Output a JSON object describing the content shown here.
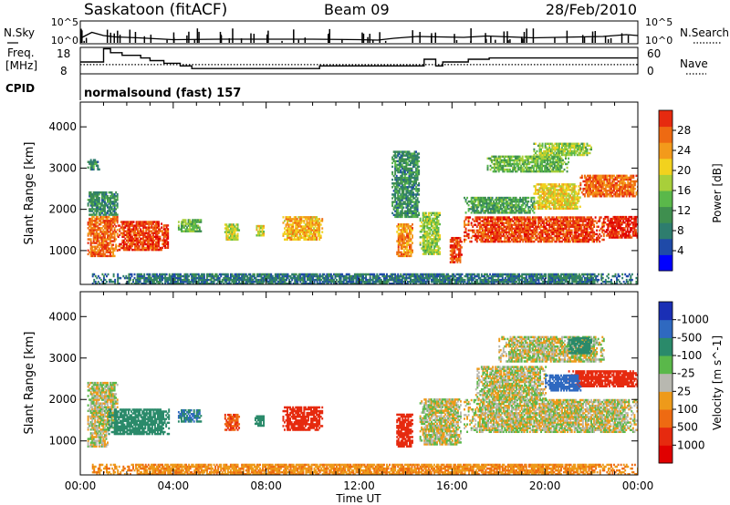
{
  "header": {
    "station": "Saskatoon (fitACF)",
    "beam": "Beam 09",
    "date": "28/Feb/2010"
  },
  "top_panels": {
    "nsky_label": "N.Sky",
    "nsky_ticks": [
      "10^5",
      "10^0"
    ],
    "nsearch_label": "N.Search",
    "nsearch_ticks": [
      "10^5",
      "10^0"
    ],
    "freq_label": "Freq.",
    "freq_unit": "[MHz]",
    "freq_ticks": [
      "18",
      "8"
    ],
    "nave_label": "Nave",
    "nave_ticks": [
      "60",
      "0"
    ],
    "cpid_label": "CPID",
    "cpid_value": "normalsound (fast) 157"
  },
  "axes": {
    "xlabel": "Time UT",
    "x_ticks": [
      "00:00",
      "04:00",
      "08:00",
      "12:00",
      "16:00",
      "20:00",
      "00:00"
    ],
    "ylabel": "Slant Range [km]",
    "y_ticks": [
      "1000",
      "2000",
      "3000",
      "4000"
    ]
  },
  "colors": {
    "power": [
      "#0000ff",
      "#1f4aa8",
      "#2e7d6e",
      "#3f8f4f",
      "#5ab84a",
      "#a8cf3a",
      "#f2d21e",
      "#f39a1b",
      "#ee6a12",
      "#e62a0f",
      "#e00000"
    ],
    "velocity": [
      "#1a2fb5",
      "#2f69c0",
      "#2a8a6a",
      "#5ab84a",
      "#b8b8b0",
      "#ee9a1a",
      "#ee6a12",
      "#e62a0f",
      "#e00000"
    ]
  },
  "chart_data": [
    {
      "type": "heatmap",
      "title": "",
      "xlabel": "Time UT",
      "ylabel": "Slant Range [km]",
      "xlim": [
        0,
        24
      ],
      "ylim": [
        180,
        4600
      ],
      "colorbar_label": "Power [dB]",
      "colorbar_ticks": [
        "4",
        "8",
        "12",
        "16",
        "20",
        "24",
        "28"
      ],
      "colorbar_range": [
        0,
        30
      ],
      "patches": [
        {
          "t0": 0.3,
          "t1": 1.6,
          "r0": 850,
          "r1": 1800,
          "v": 24
        },
        {
          "t0": 0.3,
          "t1": 1.6,
          "r0": 1850,
          "r1": 2400,
          "v": 8
        },
        {
          "t0": 0.3,
          "t1": 0.8,
          "r0": 2950,
          "r1": 3200,
          "v": 8
        },
        {
          "t0": 1.6,
          "t1": 3.5,
          "r0": 1000,
          "r1": 1700,
          "v": 26
        },
        {
          "t0": 3.5,
          "t1": 3.8,
          "r0": 1050,
          "r1": 1600,
          "v": 26
        },
        {
          "t0": 4.2,
          "t1": 5.2,
          "r0": 1450,
          "r1": 1750,
          "v": 12
        },
        {
          "t0": 6.2,
          "t1": 6.8,
          "r0": 1250,
          "r1": 1650,
          "v": 16
        },
        {
          "t0": 7.5,
          "t1": 7.9,
          "r0": 1350,
          "r1": 1600,
          "v": 16
        },
        {
          "t0": 8.7,
          "t1": 10.4,
          "r0": 1250,
          "r1": 1800,
          "v": 20
        },
        {
          "t0": 13.6,
          "t1": 14.3,
          "r0": 850,
          "r1": 1650,
          "v": 22
        },
        {
          "t0": 14.6,
          "t1": 15.5,
          "r0": 900,
          "r1": 1900,
          "v": 14
        },
        {
          "t0": 15.9,
          "t1": 16.4,
          "r0": 700,
          "r1": 1300,
          "v": 26
        },
        {
          "t0": 16.5,
          "t1": 22.5,
          "r0": 1200,
          "r1": 1800,
          "v": 26
        },
        {
          "t0": 22.5,
          "t1": 24.0,
          "r0": 1300,
          "r1": 1800,
          "v": 28
        },
        {
          "t0": 16.5,
          "t1": 19.5,
          "r0": 1900,
          "r1": 2300,
          "v": 10
        },
        {
          "t0": 19.5,
          "t1": 21.5,
          "r0": 2000,
          "r1": 2600,
          "v": 18
        },
        {
          "t0": 21.5,
          "t1": 24.0,
          "r0": 2300,
          "r1": 2800,
          "v": 24
        },
        {
          "t0": 17.5,
          "t1": 21.0,
          "r0": 2900,
          "r1": 3300,
          "v": 12
        },
        {
          "t0": 19.5,
          "t1": 22.0,
          "r0": 3300,
          "r1": 3600,
          "v": 14
        },
        {
          "t0": 13.4,
          "t1": 14.6,
          "r0": 1800,
          "r1": 3400,
          "v": 8
        },
        {
          "t0": 0.5,
          "t1": 24.0,
          "r0": 180,
          "r1": 420,
          "v": 6
        }
      ]
    },
    {
      "type": "heatmap",
      "title": "",
      "xlabel": "Time UT",
      "ylabel": "Slant Range [km]",
      "xlim": [
        0,
        24
      ],
      "ylim": [
        180,
        4600
      ],
      "colorbar_label": "Velocity [m s^-1]",
      "colorbar_ticks": [
        "1000",
        "500",
        "100",
        "25",
        "-25",
        "-100",
        "-500",
        "-1000"
      ],
      "colorbar_range": [
        -1000,
        1000
      ],
      "patches": [
        {
          "t0": 0.3,
          "t1": 1.2,
          "r0": 850,
          "r1": 1300,
          "v": 0
        },
        {
          "t0": 0.3,
          "t1": 1.6,
          "r0": 1300,
          "r1": 2400,
          "v": 0
        },
        {
          "t0": 1.2,
          "t1": 3.8,
          "r0": 1150,
          "r1": 1750,
          "v": 150
        },
        {
          "t0": 4.2,
          "t1": 5.2,
          "r0": 1450,
          "r1": 1750,
          "v": 300
        },
        {
          "t0": 6.2,
          "t1": 6.8,
          "r0": 1250,
          "r1": 1650,
          "v": -300
        },
        {
          "t0": 7.5,
          "t1": 7.9,
          "r0": 1350,
          "r1": 1600,
          "v": 200
        },
        {
          "t0": 8.7,
          "t1": 10.4,
          "r0": 1250,
          "r1": 1800,
          "v": -350
        },
        {
          "t0": 13.6,
          "t1": 14.3,
          "r0": 850,
          "r1": 1650,
          "v": -400
        },
        {
          "t0": 14.6,
          "t1": 16.4,
          "r0": 900,
          "r1": 2000,
          "v": 0
        },
        {
          "t0": 16.5,
          "t1": 24.0,
          "r0": 1200,
          "r1": 2000,
          "v": 0
        },
        {
          "t0": 17.0,
          "t1": 20.0,
          "r0": 2000,
          "r1": 2800,
          "v": 0
        },
        {
          "t0": 21.0,
          "t1": 24.0,
          "r0": 2300,
          "r1": 2700,
          "v": -400
        },
        {
          "t0": 20.0,
          "t1": 21.5,
          "r0": 2200,
          "r1": 2600,
          "v": 600
        },
        {
          "t0": 18.0,
          "t1": 22.5,
          "r0": 2900,
          "r1": 3500,
          "v": 0
        },
        {
          "t0": 21.0,
          "t1": 22.0,
          "r0": 3100,
          "r1": 3500,
          "v": 150
        },
        {
          "t0": 0.5,
          "t1": 24.0,
          "r0": 180,
          "r1": 420,
          "v": -50
        }
      ]
    },
    {
      "type": "line",
      "title": "",
      "xlabel": "Time UT",
      "ylabel": "N.Sky",
      "xlim": [
        0,
        24
      ],
      "ylim": [
        0,
        5
      ],
      "series": [
        {
          "name": "N.Sky",
          "x": [
            0,
            0.5,
            1.0,
            1.5,
            2.5,
            4.0,
            6.0,
            8.0,
            10.0,
            12.0,
            12.8,
            13.5,
            14.5,
            15.5,
            16.5,
            17.5,
            18.5,
            19.5,
            20.5,
            21.5,
            22.5,
            23.5,
            24.0
          ],
          "values": [
            1.2,
            2.5,
            1.8,
            1.5,
            1.3,
            0.9,
            1.0,
            1.0,
            1.0,
            0.9,
            0.8,
            1.2,
            1.6,
            1.5,
            1.4,
            1.7,
            1.5,
            1.3,
            1.4,
            1.5,
            1.6,
            2.0,
            1.8
          ]
        }
      ]
    },
    {
      "type": "line",
      "title": "",
      "xlabel": "Time UT",
      "ylabel": "Freq. [MHz]",
      "xlim": [
        0,
        24
      ],
      "ylim": [
        8,
        18
      ],
      "series": [
        {
          "name": "Freq.",
          "x": [
            0,
            1.0,
            1.3,
            1.8,
            2.6,
            3.0,
            3.6,
            4.3,
            4.8,
            9.5,
            10.3,
            10.6,
            14.6,
            14.8,
            15.1,
            15.3,
            15.6,
            16.4,
            16.7,
            17.2,
            17.6,
            24.0
          ],
          "values": [
            12.5,
            17.5,
            16.0,
            15.0,
            14.0,
            13.0,
            12.0,
            11.0,
            10.0,
            10.0,
            11.0,
            11.0,
            11.0,
            13.5,
            13.5,
            11.0,
            12.5,
            12.5,
            13.5,
            13.5,
            14.0,
            14.0
          ]
        },
        {
          "name": "Nave",
          "x": [
            0,
            24.0
          ],
          "values": [
            11.5,
            11.5
          ]
        }
      ]
    }
  ]
}
